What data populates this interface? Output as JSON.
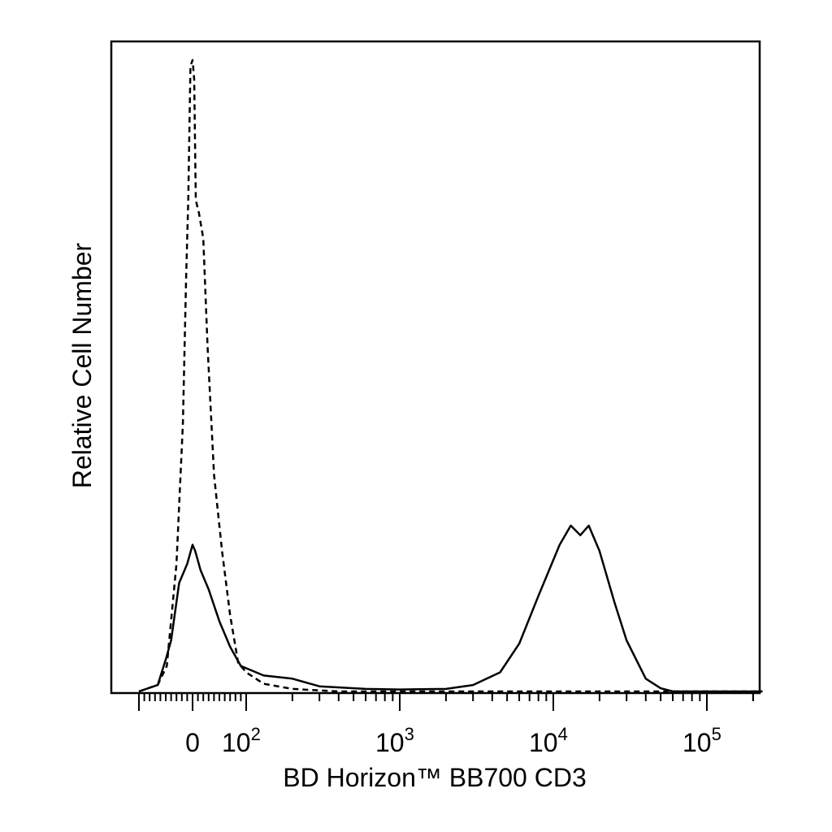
{
  "chart_data": {
    "type": "line",
    "title": "",
    "xlabel": "BD Horizon™ BB700 CD3",
    "ylabel": "Relative Cell Number",
    "x_scale": "biexponential",
    "xlim": [
      -100,
      230000
    ],
    "ylim": [
      0,
      1.0
    ],
    "grid": false,
    "legend": "none",
    "x_tick_labels": [
      {
        "value": 0,
        "base": "0",
        "exp": ""
      },
      {
        "value": 100,
        "base": "10",
        "exp": "2"
      },
      {
        "value": 1000,
        "base": "10",
        "exp": "3"
      },
      {
        "value": 10000,
        "base": "10",
        "exp": "4"
      },
      {
        "value": 100000,
        "base": "10",
        "exp": "5"
      }
    ],
    "series": [
      {
        "style": "dashed",
        "color": "#000000",
        "points": [
          [
            -100,
            0
          ],
          [
            -65,
            0.01
          ],
          [
            -48,
            0.04
          ],
          [
            -30,
            0.2
          ],
          [
            -18,
            0.42
          ],
          [
            -12,
            0.65
          ],
          [
            -8,
            0.77
          ],
          [
            -4,
            0.98
          ],
          [
            0,
            0.99
          ],
          [
            3,
            0.96
          ],
          [
            6,
            0.77
          ],
          [
            12,
            0.75
          ],
          [
            20,
            0.71
          ],
          [
            28,
            0.54
          ],
          [
            40,
            0.34
          ],
          [
            55,
            0.22
          ],
          [
            70,
            0.12
          ],
          [
            85,
            0.045
          ],
          [
            100,
            0.03
          ],
          [
            130,
            0.012
          ],
          [
            200,
            0.004
          ],
          [
            400,
            0
          ],
          [
            230000,
            0
          ]
        ]
      },
      {
        "style": "solid",
        "color": "#000000",
        "points": [
          [
            -100,
            0
          ],
          [
            -65,
            0.01
          ],
          [
            -50,
            0.05
          ],
          [
            -40,
            0.08
          ],
          [
            -25,
            0.17
          ],
          [
            -10,
            0.2
          ],
          [
            0,
            0.23
          ],
          [
            5,
            0.22
          ],
          [
            15,
            0.19
          ],
          [
            30,
            0.16
          ],
          [
            50,
            0.11
          ],
          [
            70,
            0.07
          ],
          [
            90,
            0.04
          ],
          [
            130,
            0.025
          ],
          [
            200,
            0.02
          ],
          [
            300,
            0.008
          ],
          [
            600,
            0.004
          ],
          [
            1000,
            0.003
          ],
          [
            2000,
            0.004
          ],
          [
            3000,
            0.01
          ],
          [
            4500,
            0.03
          ],
          [
            6000,
            0.075
          ],
          [
            8000,
            0.15
          ],
          [
            11000,
            0.23
          ],
          [
            13000,
            0.26
          ],
          [
            15000,
            0.245
          ],
          [
            17000,
            0.26
          ],
          [
            20000,
            0.22
          ],
          [
            25000,
            0.14
          ],
          [
            30000,
            0.08
          ],
          [
            40000,
            0.02
          ],
          [
            50000,
            0.005
          ],
          [
            60000,
            0
          ],
          [
            230000,
            0
          ]
        ]
      }
    ]
  }
}
